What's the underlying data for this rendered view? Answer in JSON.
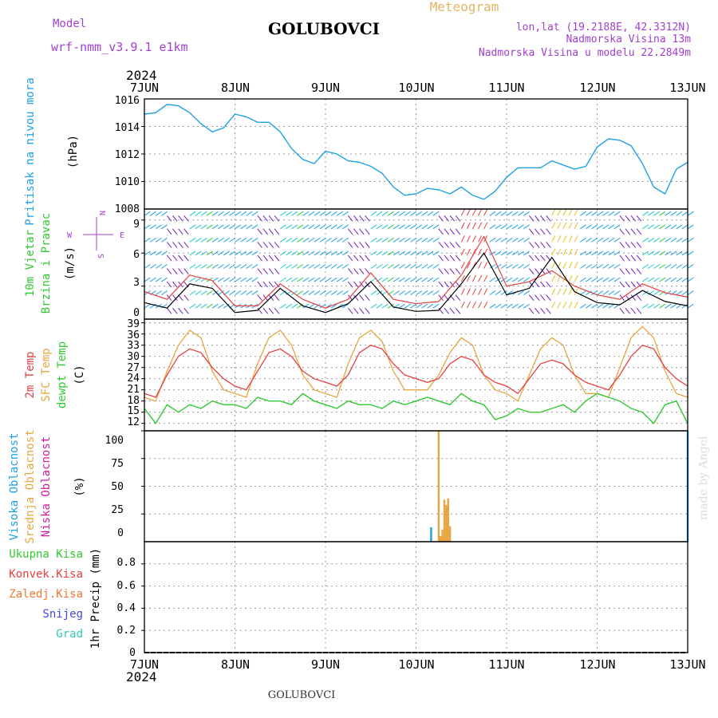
{
  "header": {
    "model_label": "Model",
    "model_name": "wrf-nmm_v3.9.1  e1km",
    "station": "GOLUBOVCI",
    "meteogram_label": "Meteogram",
    "lonlat": "lon,lat (19.2188E, 42.3312N)",
    "altitude": "Nadmorska Visina 13m",
    "model_altitude": "Nadmorska Visina u modelu 22.2849m",
    "year_top": "2024",
    "year_bottom": "2024",
    "footer_station": "GOLUBOVCI",
    "credit": "made by Angel"
  },
  "colors": {
    "pressure": "#1ea0e6",
    "t2m": "#e64040",
    "sfc": "#e6a640",
    "dew": "#32c832",
    "high_cloud": "#1ea0e6",
    "mid_cloud": "#e6a640",
    "low_cloud": "#d01e9e",
    "wind_speed": "#000000",
    "gust": "#e64040",
    "purple_text": "#a040d0",
    "orange_text": "#e6b464"
  },
  "chart_data": [
    {
      "type": "line",
      "panel": "pressure",
      "ylabel_main": "Pritisak na nivou mora",
      "ylabel_unit": "(hPa)",
      "x_ticks": [
        "7JUN",
        "8JUN",
        "9JUN",
        "10JUN",
        "11JUN",
        "12JUN",
        "13JUN"
      ],
      "ylim": [
        1008,
        1016
      ],
      "yticks": [
        "1008",
        "1010",
        "1012",
        "1014",
        "1016"
      ],
      "grid": true,
      "x_hours": [
        0,
        3,
        6,
        9,
        12,
        15,
        18,
        21,
        24,
        27,
        30,
        33,
        36,
        39,
        42,
        45,
        48,
        51,
        54,
        57,
        60,
        63,
        66,
        69,
        72,
        75,
        78,
        81,
        84,
        87,
        90,
        93,
        96,
        99,
        102,
        105,
        108,
        111,
        114,
        117,
        120,
        123,
        126,
        129,
        132,
        135,
        138,
        141,
        144
      ],
      "series": [
        {
          "name": "pressure",
          "values": [
            1014.9,
            1015.0,
            1015.6,
            1015.5,
            1015.0,
            1014.2,
            1013.6,
            1013.9,
            1014.9,
            1014.7,
            1014.3,
            1014.3,
            1013.6,
            1012.4,
            1011.6,
            1011.3,
            1012.2,
            1012.0,
            1011.5,
            1011.4,
            1011.1,
            1010.6,
            1009.6,
            1009.0,
            1009.1,
            1009.5,
            1009.4,
            1009.1,
            1009.6,
            1009.0,
            1008.7,
            1009.3,
            1010.3,
            1011.0,
            1011.0,
            1011.0,
            1011.5,
            1011.2,
            1010.9,
            1011.1,
            1012.5,
            1013.1,
            1013.0,
            1012.6,
            1011.3,
            1009.6,
            1009.1,
            1010.9,
            1011.4
          ]
        }
      ]
    },
    {
      "type": "line",
      "panel": "wind",
      "ylabel_main": "10m Vjetar",
      "ylabel_sub": "Brzina i Pravac",
      "ylabel_unit": "(m/s)",
      "compass": [
        "N",
        "E",
        "S",
        "W"
      ],
      "ylim": [
        0,
        10
      ],
      "yticks": [
        "0",
        "3",
        "6",
        "9"
      ],
      "grid": true,
      "x_hours": [
        0,
        6,
        12,
        18,
        24,
        30,
        36,
        42,
        48,
        54,
        60,
        66,
        72,
        78,
        84,
        90,
        96,
        102,
        108,
        114,
        120,
        126,
        132,
        138,
        144
      ],
      "series": [
        {
          "name": "speed",
          "values": [
            1.5,
            1.0,
            3.2,
            2.8,
            0.6,
            0.8,
            2.8,
            1.2,
            0.6,
            1.4,
            3.4,
            1.1,
            0.7,
            0.8,
            3.2,
            6.0,
            2.2,
            2.8,
            5.6,
            2.5,
            1.5,
            1.3,
            2.6,
            1.6,
            1.2
          ]
        },
        {
          "name": "gust",
          "values": [
            2.5,
            1.8,
            4.0,
            3.5,
            1.2,
            1.2,
            3.2,
            1.8,
            1.0,
            1.8,
            4.2,
            1.8,
            1.4,
            1.6,
            4.0,
            7.5,
            3.0,
            3.4,
            4.4,
            3.0,
            2.2,
            1.8,
            3.2,
            2.4,
            2.0
          ]
        }
      ]
    },
    {
      "type": "line",
      "panel": "temperature",
      "ylabel_lines": [
        "2m Temp",
        "SFC Temp",
        "dewpt Temp"
      ],
      "ylabel_unit": "(C)",
      "ylim": [
        10,
        40
      ],
      "yticks": [
        "12",
        "15",
        "18",
        "21",
        "24",
        "27",
        "30",
        "33",
        "36",
        "39"
      ],
      "grid": true,
      "x_hours": [
        0,
        3,
        6,
        9,
        12,
        15,
        18,
        21,
        24,
        27,
        30,
        33,
        36,
        39,
        42,
        45,
        48,
        51,
        54,
        57,
        60,
        63,
        66,
        69,
        72,
        75,
        78,
        81,
        84,
        87,
        90,
        93,
        96,
        99,
        102,
        105,
        108,
        111,
        114,
        117,
        120,
        123,
        126,
        129,
        132,
        135,
        138,
        141,
        144
      ],
      "series": [
        {
          "name": "t2m",
          "values": [
            20,
            19,
            25,
            30,
            32,
            31,
            27,
            24,
            22,
            21,
            26,
            31,
            32,
            30,
            26,
            24,
            23,
            22,
            25,
            31,
            33,
            32,
            28,
            25,
            24,
            23,
            24,
            28,
            30,
            29,
            25,
            23,
            22,
            20,
            24,
            28,
            29,
            28,
            25,
            23,
            22,
            21,
            25,
            30,
            33,
            32,
            27,
            24,
            22
          ]
        },
        {
          "name": "sfc",
          "values": [
            19,
            18,
            26,
            33,
            37,
            35,
            26,
            21,
            20,
            19,
            28,
            35,
            37,
            33,
            25,
            21,
            20,
            19,
            28,
            35,
            37,
            34,
            26,
            21,
            21,
            21,
            25,
            31,
            35,
            33,
            25,
            21,
            20,
            18,
            25,
            32,
            35,
            33,
            25,
            20,
            20,
            19,
            27,
            35,
            38,
            35,
            26,
            20,
            19
          ]
        },
        {
          "name": "dew",
          "values": [
            16,
            12,
            17,
            15,
            17,
            16,
            18,
            17,
            17,
            16,
            19,
            18,
            18,
            17,
            20,
            18,
            17,
            16,
            18,
            17,
            17,
            16,
            18,
            17,
            18,
            19,
            18,
            17,
            20,
            18,
            17,
            13,
            14,
            16,
            15,
            15,
            16,
            17,
            15,
            18,
            20,
            19,
            18,
            16,
            15,
            12,
            17,
            18,
            12
          ]
        }
      ]
    },
    {
      "type": "bar",
      "panel": "cloud",
      "ylabel_lines": [
        "Visoka Oblacnost",
        "Srednja Oblacnost",
        "Niska Oblacnost"
      ],
      "ylabel_unit": "(%)",
      "ylim": [
        0,
        100
      ],
      "yticks": [
        "0",
        "25",
        "50",
        "75",
        "100"
      ],
      "grid": true,
      "series": [
        {
          "name": "high",
          "x_hours": [
            76,
            144
          ],
          "values": [
            13,
            100
          ]
        },
        {
          "name": "mid",
          "x_hours": [
            78,
            78.5,
            79,
            79.5,
            80,
            80.5,
            81,
            81.5
          ],
          "values": [
            100,
            5,
            11,
            38,
            33,
            39,
            14,
            0
          ]
        },
        {
          "name": "low",
          "x_hours": [],
          "values": []
        }
      ]
    },
    {
      "type": "bar",
      "panel": "precip",
      "ylabel_legend": [
        "Ukupna Kisa",
        "Konvek.Kisa",
        "Zaledj.Kisa",
        "Snijeg",
        "Grad"
      ],
      "ylabel_unit": "1hr Precip (mm)",
      "ylim": [
        0,
        1
      ],
      "yticks": [
        "0",
        "0.2",
        "0.4",
        "0.6",
        "0.8"
      ],
      "grid": true,
      "series": []
    }
  ]
}
